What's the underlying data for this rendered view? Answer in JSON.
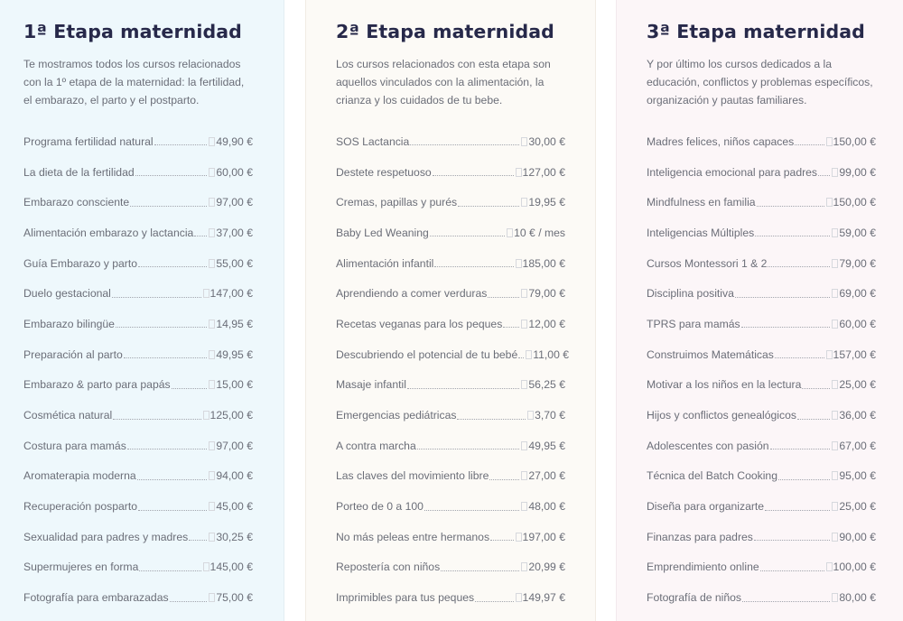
{
  "stages": [
    {
      "title": "1ª Etapa maternidad",
      "description": "Te mostramos todos los cursos relacionados con la 1º etapa de la maternidad: la fertilidad, el embarazo, el parto y el postparto.",
      "courses": [
        {
          "name": "Programa fertilidad natural",
          "price": "49,90 €"
        },
        {
          "name": "La dieta de la fertilidad",
          "price": "60,00 €"
        },
        {
          "name": "Embarazo consciente",
          "price": "97,00 €"
        },
        {
          "name": "Alimentación embarazo y lactancia",
          "price": "37,00 €"
        },
        {
          "name": "Guía Embarazo y parto",
          "price": "55,00 €"
        },
        {
          "name": "Duelo gestacional",
          "price": "147,00 €"
        },
        {
          "name": "Embarazo bilingüe",
          "price": "14,95 €"
        },
        {
          "name": "Preparación al parto",
          "price": "49,95 €"
        },
        {
          "name": "Embarazo & parto para papás",
          "price": "15,00 €"
        },
        {
          "name": "Cosmética natural",
          "price": "125,00 €"
        },
        {
          "name": "Costura para mamás",
          "price": "97,00 €"
        },
        {
          "name": "Aromaterapia moderna",
          "price": "94,00 €"
        },
        {
          "name": "Recuperación posparto",
          "price": "45,00 €"
        },
        {
          "name": "Sexualidad para padres y madres",
          "price": "30,25 €"
        },
        {
          "name": "Supermujeres en forma",
          "price": "145,00 €"
        },
        {
          "name": "Fotografía para embarazadas",
          "price": "75,00 €"
        }
      ]
    },
    {
      "title": "2ª Etapa maternidad",
      "description": "Los cursos relacionados con esta etapa son aquellos vinculados con la alimentación, la crianza y los cuidados de tu bebe.",
      "courses": [
        {
          "name": "SOS Lactancia",
          "price": "30,00 €"
        },
        {
          "name": "Destete respetuoso",
          "price": "127,00 €"
        },
        {
          "name": "Cremas, papillas y purés",
          "price": "19,95 €"
        },
        {
          "name": "Baby Led Weaning",
          "price": "10 € / mes"
        },
        {
          "name": "Alimentación infantil",
          "price": "185,00 €"
        },
        {
          "name": "Aprendiendo a comer verduras",
          "price": "79,00 €"
        },
        {
          "name": "Recetas veganas para los peques",
          "price": "12,00 €"
        },
        {
          "name": "Descubriendo el potencial de tu bebé",
          "price": "11,00 €"
        },
        {
          "name": "Masaje infantil",
          "price": "56,25 €"
        },
        {
          "name": "Emergencias pediátricas",
          "price": "3,70 €"
        },
        {
          "name": "A contra marcha",
          "price": "49,95 €"
        },
        {
          "name": "Las claves del movimiento libre",
          "price": "27,00 €"
        },
        {
          "name": "Porteo de 0 a 100",
          "price": "48,00 €"
        },
        {
          "name": "No más peleas entre hermanos",
          "price": "197,00 €"
        },
        {
          "name": "Repostería con niños",
          "price": "20,99 €"
        },
        {
          "name": "Imprimibles para tus peques",
          "price": "149,97 €"
        }
      ]
    },
    {
      "title": "3ª Etapa maternidad",
      "description": "Y por último los cursos dedicados a la educación, conflictos y problemas específicos, organización y pautas familiares.",
      "courses": [
        {
          "name": "Madres felices, niños capaces",
          "price": "150,00 €"
        },
        {
          "name": "Inteligencia emocional para padres",
          "price": "99,00 €"
        },
        {
          "name": "Mindfulness en familia",
          "price": "150,00 €"
        },
        {
          "name": "Inteligencias Múltiples",
          "price": "59,00 €"
        },
        {
          "name": "Cursos Montessori 1 & 2",
          "price": "79,00 €"
        },
        {
          "name": "Disciplina positiva",
          "price": "69,00 €"
        },
        {
          "name": "TPRS para mamás",
          "price": "60,00 €"
        },
        {
          "name": "Construimos Matemáticas",
          "price": "157,00 €"
        },
        {
          "name": "Motivar a los niños en la lectura",
          "price": "25,00 €"
        },
        {
          "name": "Hijos y conflictos genealógicos",
          "price": "36,00 €"
        },
        {
          "name": "Adolescentes con pasión",
          "price": "67,00 €"
        },
        {
          "name": "Técnica del Batch Cooking",
          "price": "95,00 €"
        },
        {
          "name": "Diseña para organizarte",
          "price": "25,00 €"
        },
        {
          "name": "Finanzas para padres",
          "price": "90,00 €"
        },
        {
          "name": "Emprendimiento online",
          "price": "100,00 €"
        },
        {
          "name": "Fotografía de niños",
          "price": "80,00 €"
        }
      ]
    }
  ],
  "colors": {
    "title": "#27294a",
    "text": "#6b6e78",
    "stage1_bg": "#eef8fc",
    "stage2_bg": "#fcfaf6",
    "stage3_bg": "#fcf6f8"
  }
}
